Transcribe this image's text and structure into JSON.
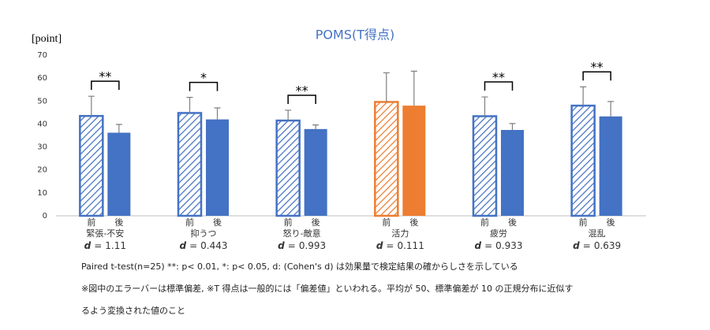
{
  "chart_data": {
    "type": "bar",
    "title": "POMS(T得点)",
    "ylabel": "[point]",
    "categories": [
      "緊張-不安",
      "抑うつ",
      "怒り-敵意",
      "活力",
      "疲労",
      "混乱"
    ],
    "category_colors": [
      "#4472c4",
      "#4472c4",
      "#4472c4",
      "#ed7d31",
      "#4472c4",
      "#4472c4"
    ],
    "series": [
      {
        "name": "前",
        "pattern": "hatch",
        "values": [
          43.5,
          44.8,
          41.5,
          49.6,
          43.4,
          48.0
        ],
        "errors": [
          8.6,
          6.8,
          4.5,
          12.7,
          8.4,
          8.2
        ]
      },
      {
        "name": "後",
        "pattern": "solid",
        "values": [
          36.2,
          42.0,
          37.8,
          48.0,
          37.4,
          43.3
        ],
        "errors": [
          3.6,
          5.0,
          1.8,
          15.0,
          2.8,
          6.5
        ]
      }
    ],
    "significance": [
      "**",
      "*",
      "**",
      null,
      "**",
      "**"
    ],
    "effect_symbol": "d",
    "effect_equals": "=",
    "effect_sizes": [
      1.11,
      0.443,
      0.993,
      0.111,
      0.933,
      0.639
    ],
    "ylim": [
      0,
      70
    ],
    "yticks": [
      0,
      10,
      20,
      30,
      40,
      50,
      60,
      70
    ],
    "grid": false,
    "notes": [
      "Paired t-test(n=25) **: p< 0.01, *: p< 0.05, d: (Cohen's d) は効果量で検定結果の確からしさを示している",
      "※図中のエラーバーは標準偏差, ※T 得点は一般的には「偏差値」といわれる。平均が 50、標準偏差が 10 の正規分布に近似す",
      "るよう変換された値のこと"
    ]
  }
}
